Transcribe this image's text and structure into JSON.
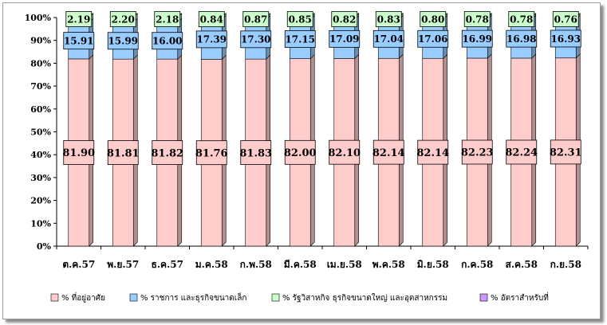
{
  "chart_data": {
    "type": "bar",
    "stacked": true,
    "percent": true,
    "categories": [
      "ต.ค.57",
      "พ.ย.57",
      "ธ.ค.57",
      "ม.ค.58",
      "ก.พ.58",
      "มี.ค.58",
      "เม.ย.58",
      "พ.ค.58",
      "มิ.ย.58",
      "ก.ค.58",
      "ส.ค.58",
      "ก.ย.58"
    ],
    "series": [
      {
        "name": "% ที่อยู่อาศัย",
        "color": "#ffcccc",
        "values": [
          81.9,
          81.81,
          81.82,
          81.76,
          81.83,
          82.0,
          82.1,
          82.14,
          82.14,
          82.23,
          82.24,
          82.31
        ],
        "labels": [
          "81.90",
          "81.81",
          "81.82",
          "81.76",
          "81.83",
          "82.00",
          "82.10",
          "82.14",
          "82.14",
          "82.23",
          "82.24",
          "82.31"
        ]
      },
      {
        "name": "% ราชการ และธุรกิจขนาดเล็ก",
        "color": "#99ccff",
        "values": [
          15.91,
          15.99,
          16.0,
          17.39,
          17.3,
          17.15,
          17.09,
          17.04,
          17.06,
          16.99,
          16.98,
          16.93
        ],
        "labels": [
          "15.91",
          "15.99",
          "16.00",
          "17.39",
          "17.30",
          "17.15",
          "17.09",
          "17.04",
          "17.06",
          "16.99",
          "16.98",
          "16.93"
        ]
      },
      {
        "name": "% รัฐวิสาหกิจ ธุรกิจขนาดใหญ่ และอุตสาหกรรม",
        "color": "#ccffcc",
        "values": [
          2.19,
          2.2,
          2.18,
          0.84,
          0.87,
          0.85,
          0.82,
          0.83,
          0.8,
          0.78,
          0.78,
          0.76
        ],
        "labels": [
          "2.19",
          "2.20",
          "2.18",
          "0.84",
          "0.87",
          "0.85",
          "0.82",
          "0.83",
          "0.80",
          "0.78",
          "0.78",
          "0.76"
        ]
      },
      {
        "name": "% อัตราสำหรับที่",
        "color": "#cc99ff",
        "values": [
          0,
          0,
          0,
          0,
          0,
          0,
          0,
          0,
          0,
          0,
          0,
          0
        ]
      }
    ],
    "yticks": [
      "0%",
      "10%",
      "20%",
      "30%",
      "40%",
      "50%",
      "60%",
      "70%",
      "80%",
      "90%",
      "100%"
    ],
    "ylim": [
      0,
      100
    ],
    "xlabel": "",
    "ylabel": "",
    "grid": false,
    "legend_position": "bottom"
  }
}
